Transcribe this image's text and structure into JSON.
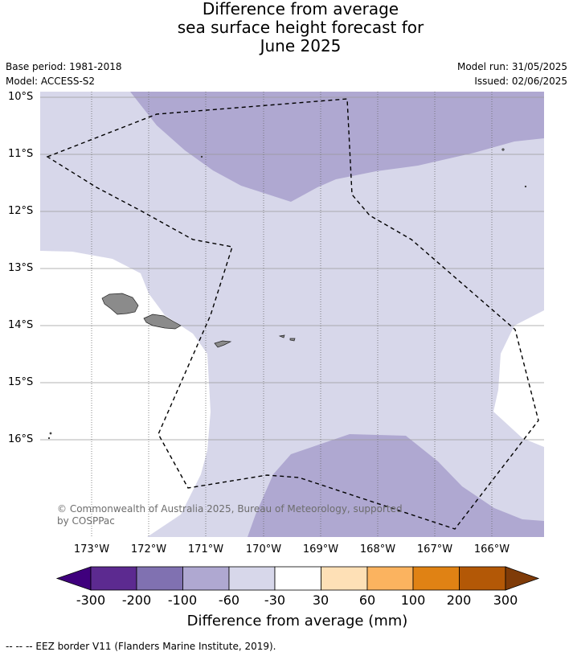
{
  "title": {
    "line1": "Difference from average",
    "line2": "sea surface height forecast for",
    "line3": "June 2025"
  },
  "meta": {
    "base_period": "Base period: 1981-2018",
    "model": "Model: ACCESS-S2",
    "model_run": "Model run: 31/05/2025",
    "issued": "Issued: 02/06/2025"
  },
  "map": {
    "lat_labels": [
      "10°S",
      "11°S",
      "12°S",
      "13°S",
      "14°S",
      "15°S",
      "16°S"
    ],
    "lon_labels": [
      "173°W",
      "172°W",
      "171°W",
      "170°W",
      "169°W",
      "168°W",
      "167°W",
      "166°W"
    ],
    "copyright": "© Commonwealth of Australia 2025, Bureau of Meteorology, supported by COSPPac",
    "colors": {
      "ocean_white": "#ffffff",
      "light_band": "#d7d7ea",
      "mid_band": "#afa8d1",
      "land": "#8b8b8b",
      "gridline": "#999999"
    }
  },
  "colorbar": {
    "label": "Difference from average (mm)",
    "ticks": [
      "-300",
      "-200",
      "-100",
      "-60",
      "-30",
      "30",
      "60",
      "100",
      "200",
      "300"
    ],
    "colors": [
      "#3f007d",
      "#5c2a90",
      "#8071b1",
      "#afa8d1",
      "#d7d7ea",
      "#ffffff",
      "#fee0b6",
      "#fbb35f",
      "#e08214",
      "#b35806",
      "#7f3b08"
    ]
  },
  "footnote": "--  --  -- EEZ border V11 (Flanders Marine Institute, 2019)."
}
